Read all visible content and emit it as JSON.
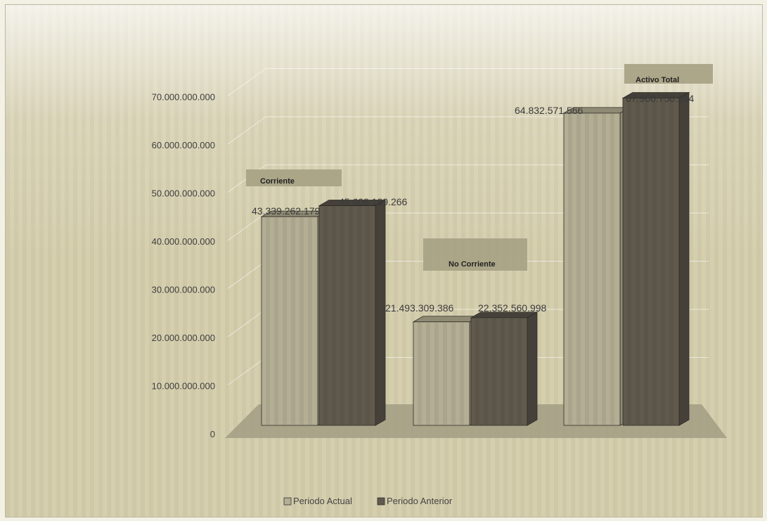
{
  "chart_data": {
    "type": "bar",
    "categories": [
      "Corriente",
      "No Corriente",
      "Activo  Total"
    ],
    "series": [
      {
        "name": "Periodo Actual",
        "values": [
          43339262179,
          21493309386,
          64832571566
        ],
        "value_labels": [
          "43.339.262.179",
          "21.493.309.386",
          "64.832.571.566"
        ],
        "color": "#b3ae94"
      },
      {
        "name": "Periodo Anterior",
        "values": [
          45608189266,
          22352560998,
          67960750264
        ],
        "value_labels": [
          "45.608.189.266",
          "22.352.560.998",
          "67.960.750.264"
        ],
        "color": "#5f5a4c"
      }
    ],
    "y_ticks": [
      "0",
      "10.000.000.000",
      "20.000.000.000",
      "30.000.000.000",
      "40.000.000.000",
      "50.000.000.000",
      "60.000.000.000",
      "70.000.000.000"
    ],
    "ylim": [
      0,
      70000000000
    ],
    "title": "",
    "xlabel": "",
    "ylabel": "",
    "grid": true,
    "legend_position": "bottom",
    "style": "3d-clustered-column"
  }
}
